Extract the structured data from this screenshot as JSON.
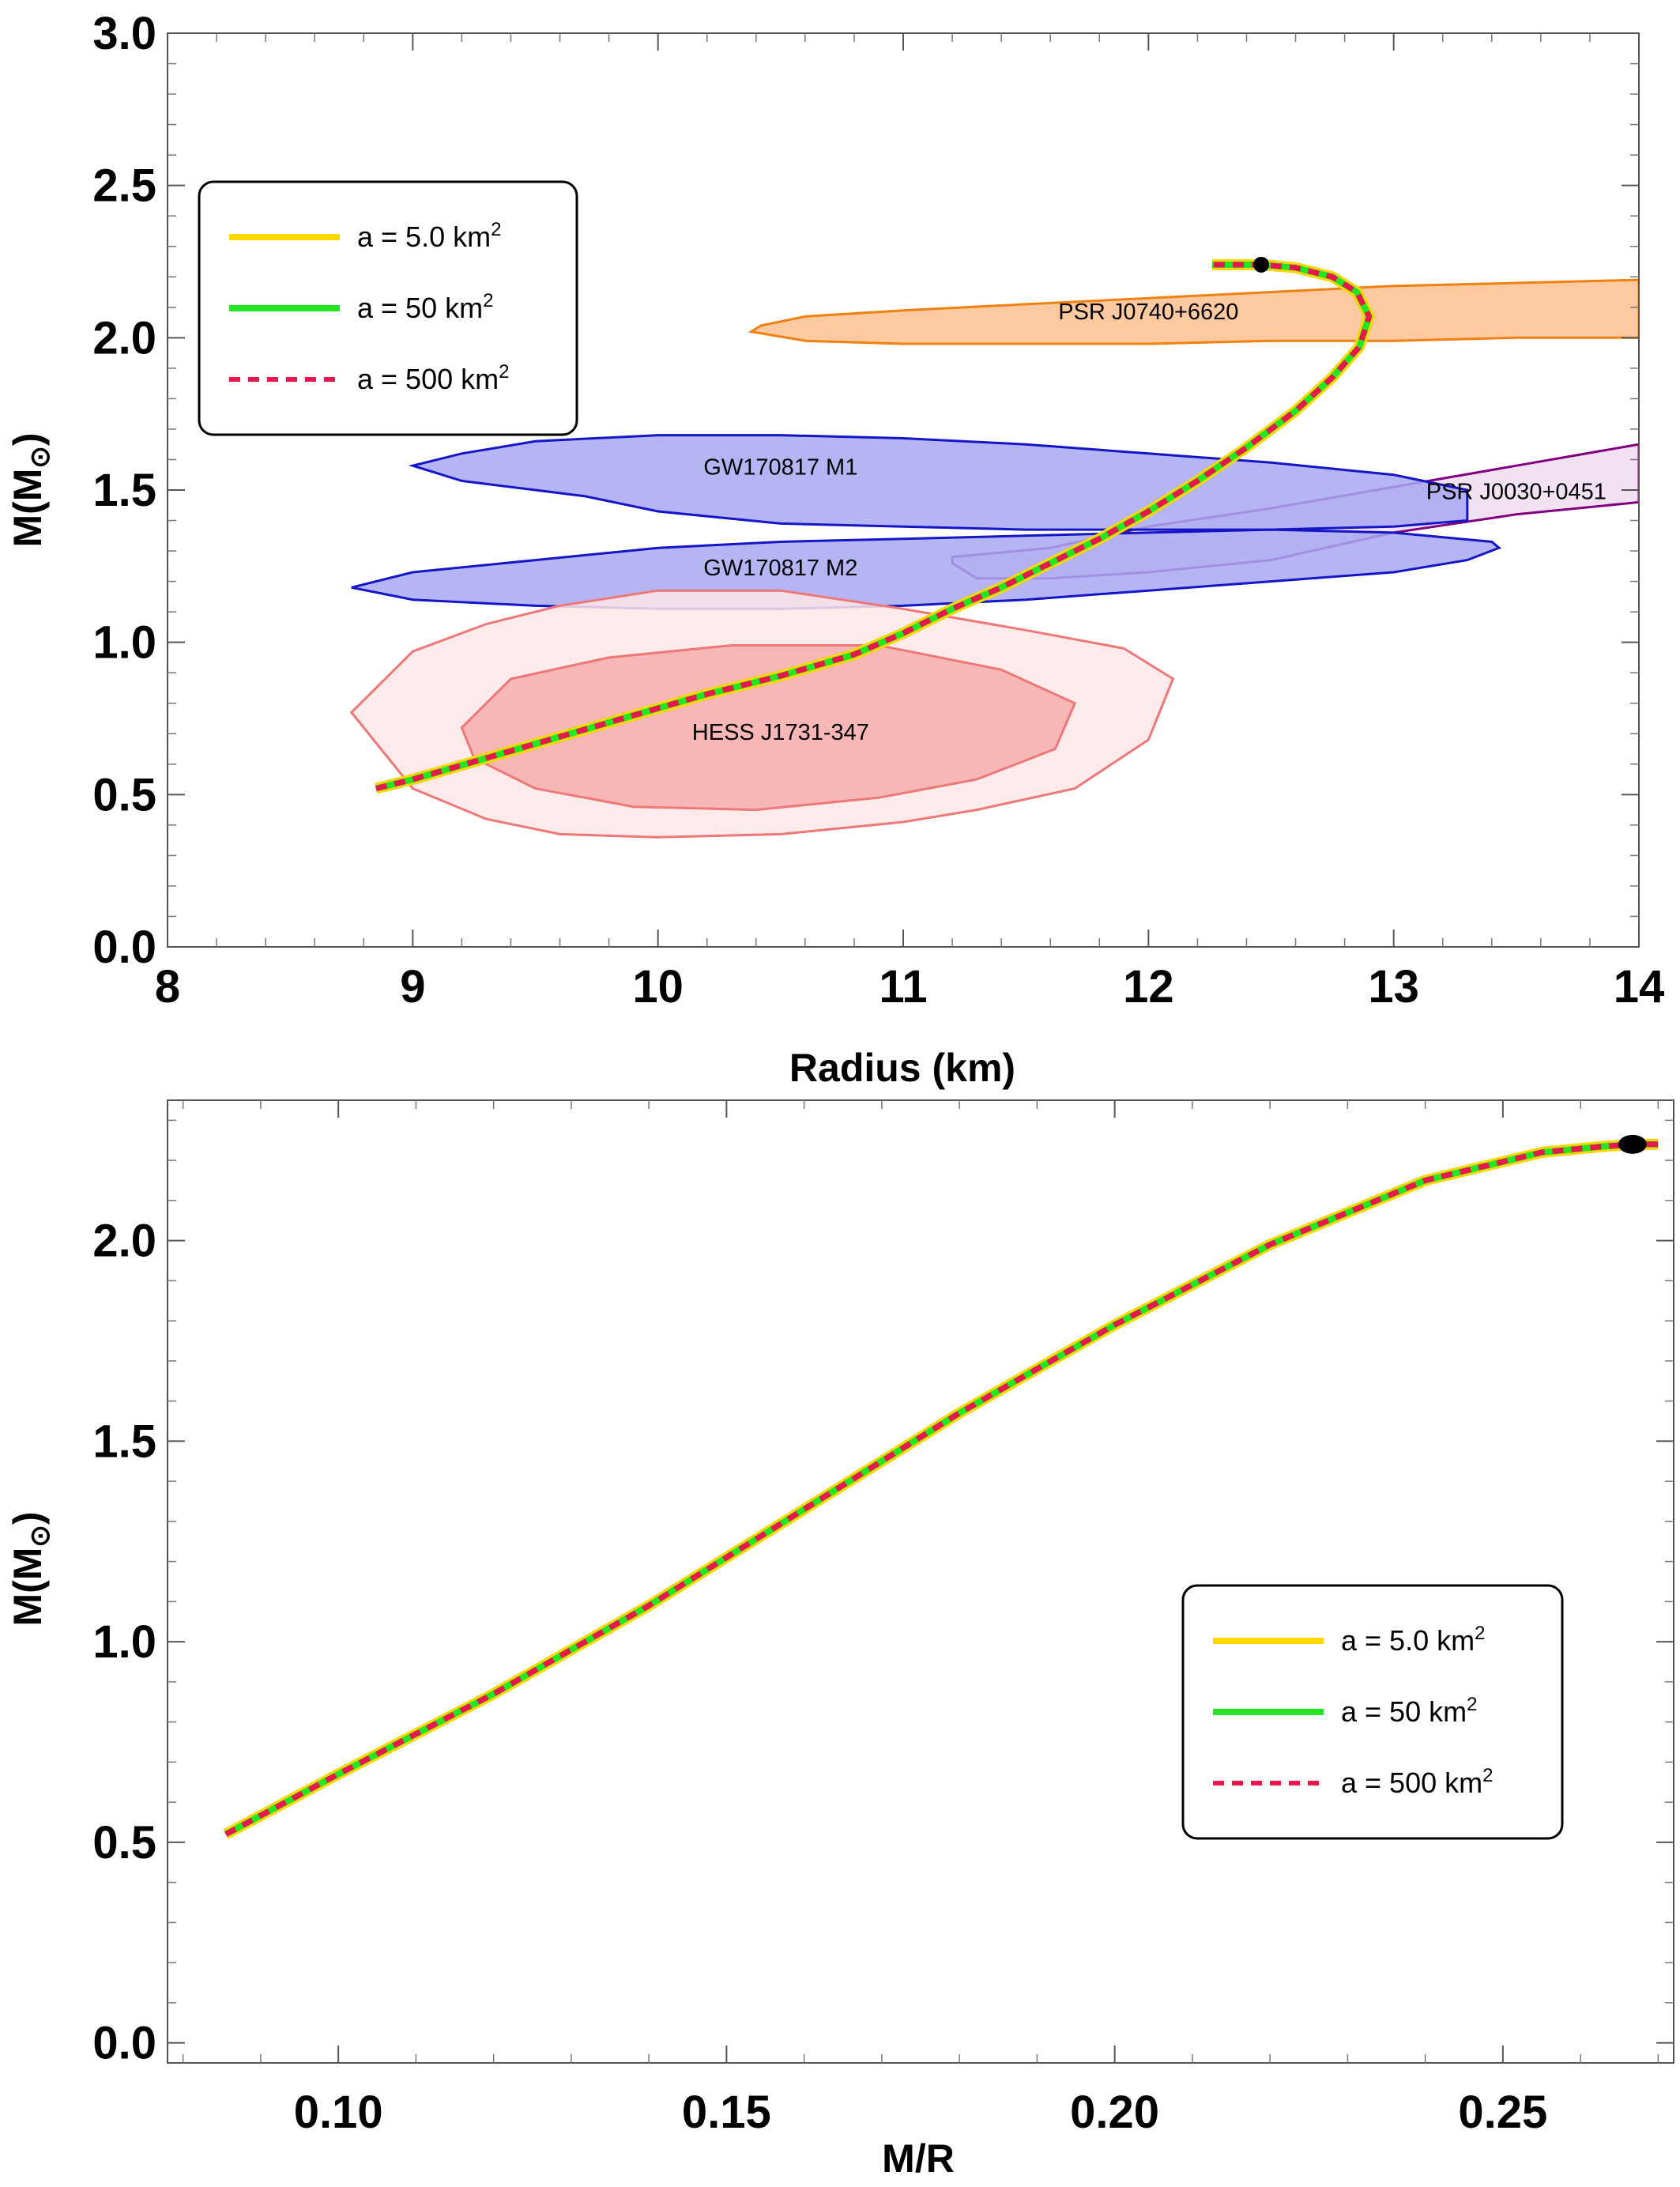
{
  "chart_data": [
    {
      "type": "line",
      "xlabel": "Radius (km)",
      "ylabel": "M(M",
      "ylabel_sub": "⊙",
      "ylabel_close": ")",
      "xlim": [
        8,
        14
      ],
      "ylim": [
        0,
        3
      ],
      "xticks": [
        "8",
        "9",
        "10",
        "11",
        "12",
        "13",
        "14"
      ],
      "yticks": [
        "0.0",
        "0.5",
        "1.0",
        "1.5",
        "2.0",
        "2.5",
        "3.0"
      ],
      "grid": false,
      "legend": {
        "position": "top-left",
        "entries": [
          {
            "prefix": "a = 5.0 km",
            "sup": "2",
            "color": "#FFD700",
            "style": "solid"
          },
          {
            "prefix": "a = 50 km",
            "sup": "2",
            "color": "#22E622",
            "style": "solid"
          },
          {
            "prefix": "a = 500 km",
            "sup": "2",
            "color": "#E8174D",
            "style": "dashed"
          }
        ]
      },
      "series": [
        {
          "x": [
            8.85,
            9.0,
            9.3,
            9.6,
            9.9,
            10.2,
            10.5,
            10.8,
            11.0,
            11.2,
            11.4,
            11.6,
            11.8,
            12.0,
            12.2,
            12.4,
            12.6,
            12.75,
            12.86,
            12.9,
            12.85,
            12.75,
            12.6,
            12.46,
            12.35,
            12.26
          ],
          "y": [
            0.52,
            0.55,
            0.62,
            0.69,
            0.76,
            0.83,
            0.89,
            0.96,
            1.03,
            1.11,
            1.18,
            1.26,
            1.34,
            1.43,
            1.53,
            1.64,
            1.76,
            1.87,
            1.97,
            2.07,
            2.15,
            2.2,
            2.23,
            2.24,
            2.24,
            2.24
          ]
        }
      ],
      "max_point": {
        "x": 12.46,
        "y": 2.24
      },
      "regions": [
        {
          "label": "PSR J0740+6620",
          "fill": "#FBC08F",
          "stroke": "#F08010",
          "x": [
            10.38,
            10.42,
            10.6,
            11.0,
            11.5,
            12.0,
            12.5,
            13.0,
            13.5,
            14.0,
            14.0,
            13.5,
            13.0,
            12.5,
            12.0,
            11.5,
            11.0,
            10.6
          ],
          "y": [
            2.02,
            2.04,
            2.07,
            2.09,
            2.11,
            2.13,
            2.15,
            2.17,
            2.18,
            2.19,
            2.0,
            2.0,
            1.99,
            1.99,
            1.98,
            1.98,
            1.98,
            1.99
          ]
        },
        {
          "label": "PSR J0030+0451",
          "fill": "#EEDCEE",
          "stroke": "#800080",
          "x": [
            11.2,
            11.6,
            12.0,
            12.5,
            13.0,
            13.5,
            14.0,
            14.0,
            13.5,
            13.0,
            12.5,
            12.0,
            11.6,
            11.3,
            11.2
          ],
          "y": [
            1.28,
            1.31,
            1.38,
            1.44,
            1.51,
            1.58,
            1.65,
            1.46,
            1.42,
            1.36,
            1.27,
            1.23,
            1.21,
            1.21,
            1.26
          ]
        },
        {
          "label": "GW170817 M2",
          "fill": "#A8A8F2",
          "stroke": "#1515C8",
          "x": [
            8.75,
            9.0,
            9.5,
            10.0,
            10.5,
            11.0,
            11.5,
            12.0,
            12.5,
            13.0,
            13.4,
            13.43,
            13.3,
            13.0,
            12.5,
            12.0,
            11.5,
            11.0,
            10.5,
            10.0,
            9.5,
            9.0
          ],
          "y": [
            1.18,
            1.23,
            1.27,
            1.31,
            1.33,
            1.34,
            1.35,
            1.36,
            1.37,
            1.36,
            1.33,
            1.31,
            1.27,
            1.23,
            1.2,
            1.17,
            1.14,
            1.12,
            1.11,
            1.11,
            1.12,
            1.14
          ]
        },
        {
          "label": "GW170817 M1",
          "fill": "#A8A8F2",
          "stroke": "#1515C8",
          "x": [
            9.0,
            9.2,
            9.5,
            10.0,
            10.5,
            11.0,
            11.5,
            12.0,
            12.5,
            13.0,
            13.3,
            13.3,
            13.0,
            12.5,
            12.0,
            11.5,
            11.0,
            10.5,
            10.0,
            9.7,
            9.5,
            9.2
          ],
          "y": [
            1.58,
            1.62,
            1.66,
            1.68,
            1.68,
            1.67,
            1.65,
            1.62,
            1.59,
            1.55,
            1.5,
            1.4,
            1.38,
            1.37,
            1.37,
            1.37,
            1.38,
            1.39,
            1.43,
            1.48,
            1.5,
            1.53
          ]
        },
        {
          "label": "HESS J1731-347",
          "fill": "#FDE6E6",
          "stroke": "#EE7777",
          "x": [
            8.75,
            9.0,
            9.3,
            9.6,
            10.0,
            10.5,
            11.0,
            11.5,
            11.9,
            12.1,
            12.0,
            11.7,
            11.3,
            11.0,
            10.5,
            10.0,
            9.6,
            9.3,
            9.0
          ],
          "y": [
            0.77,
            0.97,
            1.06,
            1.12,
            1.17,
            1.17,
            1.11,
            1.04,
            0.98,
            0.88,
            0.68,
            0.52,
            0.45,
            0.41,
            0.37,
            0.36,
            0.37,
            0.42,
            0.52
          ]
        },
        {
          "label": "",
          "fill": "#F7AEAE",
          "stroke": "#EE7777",
          "x": [
            9.2,
            9.4,
            9.8,
            10.3,
            10.9,
            11.4,
            11.7,
            11.62,
            11.3,
            10.9,
            10.4,
            9.9,
            9.5,
            9.25
          ],
          "y": [
            0.72,
            0.88,
            0.95,
            0.99,
            0.99,
            0.91,
            0.8,
            0.65,
            0.55,
            0.49,
            0.45,
            0.46,
            0.52,
            0.62
          ]
        }
      ],
      "region_label_positions": "inside each contour"
    },
    {
      "type": "line",
      "xlabel": "M/R",
      "ylabel": "M(M",
      "ylabel_sub": "⊙",
      "ylabel_close": ")",
      "xlim": [
        0.078,
        0.272
      ],
      "ylim": [
        -0.05,
        2.35
      ],
      "xticks": [
        "0.10",
        "0.15",
        "0.20",
        "0.25"
      ],
      "xtick_values": [
        0.1,
        0.15,
        0.2,
        0.25
      ],
      "yticks": [
        "0.0",
        "0.5",
        "1.0",
        "1.5",
        "2.0"
      ],
      "ytick_values": [
        0,
        0.5,
        1.0,
        1.5,
        2.0
      ],
      "grid": false,
      "legend": {
        "position": "bottom-right",
        "entries": [
          {
            "prefix": "a = 5.0 km",
            "sup": "2",
            "color": "#FFD700",
            "style": "solid"
          },
          {
            "prefix": "a = 50 km",
            "sup": "2",
            "color": "#22E622",
            "style": "solid"
          },
          {
            "prefix": "a = 500 km",
            "sup": "2",
            "color": "#E8174D",
            "style": "dashed"
          }
        ]
      },
      "series": [
        {
          "x": [
            0.0855,
            0.1,
            0.12,
            0.14,
            0.16,
            0.18,
            0.2,
            0.22,
            0.24,
            0.255,
            0.263,
            0.267,
            0.27
          ],
          "y": [
            0.52,
            0.67,
            0.87,
            1.09,
            1.33,
            1.57,
            1.79,
            1.99,
            2.15,
            2.22,
            2.235,
            2.24,
            2.24
          ]
        }
      ],
      "max_point": {
        "x": 0.2667,
        "y": 2.24
      }
    }
  ]
}
